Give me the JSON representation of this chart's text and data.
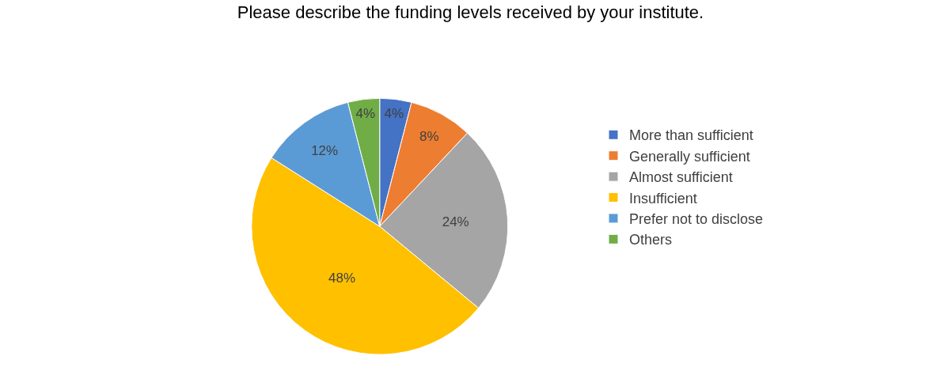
{
  "chart_data": {
    "type": "pie",
    "title": "Please describe the funding levels received by your institute.",
    "categories": [
      "More than sufficient",
      "Generally sufficient",
      "Almost sufficient",
      "Insufficient",
      "Prefer not to disclose",
      "Others"
    ],
    "values": [
      4,
      8,
      24,
      48,
      12,
      4
    ],
    "value_labels": [
      "4%",
      "8%",
      "24%",
      "48%",
      "12%",
      "4%"
    ],
    "colors": [
      "#4472c4",
      "#ed7d31",
      "#a5a5a5",
      "#ffc000",
      "#5b9bd5",
      "#70ad47"
    ],
    "legend": "right"
  }
}
